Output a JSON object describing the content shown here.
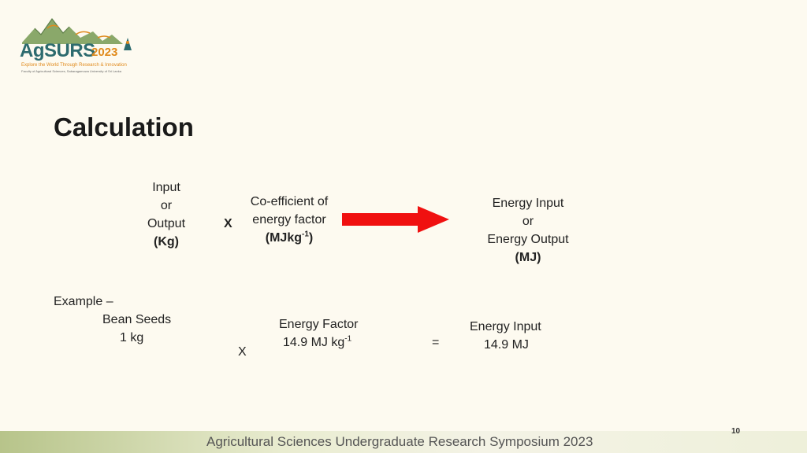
{
  "logo": {
    "wordmark": "AgSURS",
    "year": "2023",
    "tagline": "Explore the World Through Research & Innovation",
    "subline": "Faculty of Agricultural Sciences, Sabaragamuwa University of Sri Lanka",
    "colors": {
      "teal": "#2d6b6e",
      "orange": "#e08a1c",
      "mountain": "#8aa86a"
    }
  },
  "title": "Calculation",
  "formula": {
    "input_lines": [
      "Input",
      "or",
      "Output",
      "(Kg)"
    ],
    "times": "X",
    "coefficient_lines": [
      "Co-efficient of",
      "energy factor"
    ],
    "coefficient_unit": "(MJkg",
    "coefficient_unit_sup": "-1",
    "coefficient_unit_close": ")",
    "result_lines": [
      "Energy Input",
      "or",
      "Energy Output",
      "(MJ)"
    ],
    "arrow_color": "#f01010"
  },
  "example": {
    "label": "Example  –",
    "item": "Bean Seeds",
    "quantity": "1 kg",
    "times": "X",
    "factor_label": "Energy Factor",
    "factor_value": "14.9 MJ kg",
    "factor_sup": "-1",
    "equals": "=",
    "result_label": "Energy Input",
    "result_value": "14.9 MJ"
  },
  "footer": {
    "text": "Agricultural Sciences Undergraduate Research Symposium 2023",
    "page_number": "10"
  }
}
